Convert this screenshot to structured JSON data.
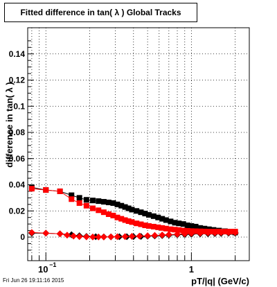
{
  "title": "Fitted difference in tan( λ )  Global Tracks",
  "timestamp": "Fri Jun 26 19:11:16 2015",
  "chart_data": {
    "type": "scatter",
    "title": "Fitted difference in tan( λ )  Global Tracks",
    "xlabel": "pT/|q| (GeV/c)",
    "ylabel": "difference in tan( λ )",
    "xscale": "log",
    "xlim": [
      0.075,
      2.5
    ],
    "ylim": [
      -0.018,
      0.16
    ],
    "grid": true,
    "yticks": [
      0,
      0.02,
      0.04,
      0.06,
      0.08,
      0.1,
      0.12,
      0.14
    ],
    "ytick_labels": [
      "0",
      "0.02",
      "0.04",
      "0.06",
      "0.08",
      "0.1",
      "0.12",
      "0.14"
    ],
    "xtick_labels": [
      {
        "v": 0.1,
        "label": "10",
        "exp": "−1"
      },
      {
        "v": 1,
        "label": "1",
        "exp": ""
      }
    ],
    "series": [
      {
        "color": "#000000",
        "x": [
          0.08,
          0.1,
          0.125,
          0.15,
          0.17,
          0.19,
          0.21,
          0.23,
          0.25,
          0.27,
          0.29,
          0.31,
          0.33,
          0.35,
          0.37,
          0.39,
          0.42,
          0.45,
          0.48,
          0.51,
          0.55,
          0.59,
          0.63,
          0.67,
          0.72,
          0.77,
          0.82,
          0.88,
          0.94,
          1.0,
          1.07,
          1.15,
          1.23,
          1.32,
          1.42,
          1.55,
          1.7,
          1.85,
          2.0
        ],
        "y": [
          0.038,
          0.036,
          0.035,
          0.032,
          0.03,
          0.0285,
          0.028,
          0.0275,
          0.027,
          0.0265,
          0.026,
          0.025,
          0.024,
          0.023,
          0.022,
          0.021,
          0.02,
          0.019,
          0.018,
          0.017,
          0.016,
          0.015,
          0.014,
          0.013,
          0.012,
          0.011,
          0.0105,
          0.01,
          0.009,
          0.0085,
          0.008,
          0.007,
          0.0065,
          0.006,
          0.0055,
          0.005,
          0.0045,
          0.004,
          0.0035
        ]
      },
      {
        "color": "#000000",
        "x": [
          0.08,
          0.1,
          0.125,
          0.15,
          0.17,
          0.19,
          0.22,
          0.25,
          0.28,
          0.32,
          0.36,
          0.4,
          0.45,
          0.5,
          0.56,
          0.63,
          0.7,
          0.8,
          0.9,
          1.0,
          1.15,
          1.3,
          1.45,
          1.6,
          1.8,
          2.0
        ],
        "y": [
          0.003,
          0.003,
          0.0025,
          0.0018,
          0.001,
          0.0005,
          0.0003,
          0.0002,
          0.0002,
          0.0003,
          0.0003,
          0.0004,
          0.0005,
          0.0007,
          0.0009,
          0.0012,
          0.0015,
          0.0018,
          0.002,
          0.0022,
          0.0025,
          0.0026,
          0.0027,
          0.0028,
          0.003,
          0.003
        ]
      },
      {
        "color": "#ff0000",
        "x": [
          0.08,
          0.1,
          0.125,
          0.15,
          0.17,
          0.19,
          0.21,
          0.23,
          0.25,
          0.27,
          0.29,
          0.31,
          0.33,
          0.35,
          0.37,
          0.39,
          0.42,
          0.45,
          0.48,
          0.51,
          0.55,
          0.59,
          0.63,
          0.67,
          0.72,
          0.77,
          0.82,
          0.88,
          0.94,
          1.0,
          1.07,
          1.15,
          1.23,
          1.32,
          1.42,
          1.55,
          1.7,
          1.85,
          2.0
        ],
        "y": [
          0.037,
          0.036,
          0.035,
          0.029,
          0.026,
          0.024,
          0.022,
          0.0205,
          0.019,
          0.0175,
          0.0165,
          0.015,
          0.014,
          0.013,
          0.0122,
          0.0115,
          0.0105,
          0.0098,
          0.009,
          0.0085,
          0.008,
          0.0075,
          0.007,
          0.0065,
          0.006,
          0.0057,
          0.0054,
          0.005,
          0.0048,
          0.0046,
          0.0045,
          0.0044,
          0.0043,
          0.0042,
          0.0042,
          0.0042,
          0.0042,
          0.0042,
          0.0042
        ]
      },
      {
        "color": "#ff0000",
        "x": [
          0.08,
          0.1,
          0.125,
          0.14,
          0.155,
          0.17,
          0.19,
          0.21,
          0.23,
          0.25,
          0.28,
          0.31,
          0.35,
          0.39,
          0.44,
          0.5,
          0.56,
          0.63,
          0.7,
          0.8,
          0.9,
          1.0,
          1.15,
          1.3,
          1.45,
          1.6,
          1.8,
          2.0
        ],
        "y": [
          0.0035,
          0.003,
          0.0025,
          0.0015,
          0.0008,
          0.0004,
          0.0002,
          0.0001,
          0.0001,
          0.0001,
          0.0002,
          0.0003,
          0.0004,
          0.0006,
          0.0008,
          0.001,
          0.0013,
          0.0016,
          0.0019,
          0.0022,
          0.0025,
          0.0028,
          0.003,
          0.0032,
          0.0033,
          0.0034,
          0.0035,
          0.0035
        ]
      }
    ]
  }
}
